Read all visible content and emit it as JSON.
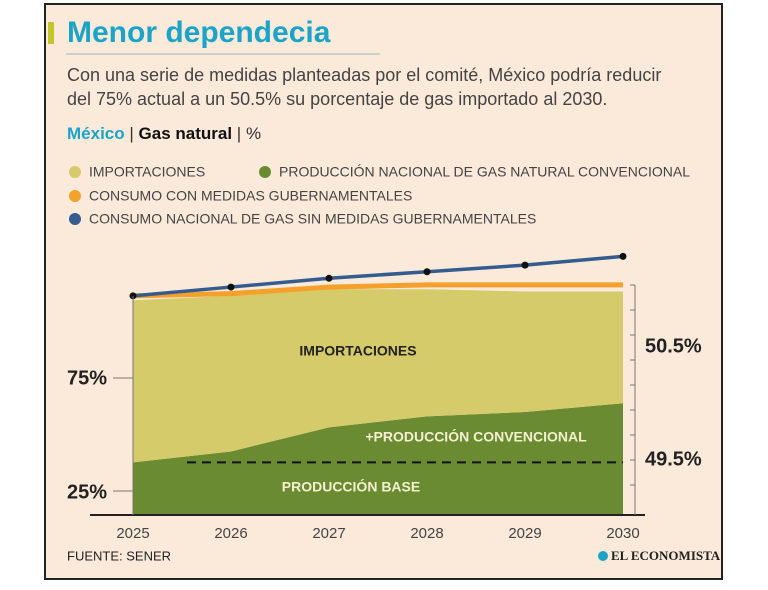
{
  "chart_data": {
    "type": "stacked-area",
    "title": "Menor dependecia",
    "subtitle": [
      "Con una serie de medidas planteadas por el comité, México podría reducir",
      "del 75% actual a un 50.5% su porcentaje de gas importado al 2030."
    ],
    "y_label": {
      "region": "México",
      "variable": "Gas natural",
      "unit": "%"
    },
    "categories": [
      "2025",
      "2026",
      "2027",
      "2028",
      "2029",
      "2030"
    ],
    "ylim": [
      0,
      120
    ],
    "series": [
      {
        "name": "IMPORTACIONES",
        "color": "#d6cb6a",
        "kind": "area",
        "values": [
          74,
          71,
          63,
          58,
          55,
          51
        ]
      },
      {
        "name": "PRODUCCIÓN NACIONAL DE GAS NATURAL CONVENCIONAL",
        "color": "#6a8b32",
        "kind": "area",
        "values": [
          24,
          29,
          40,
          45,
          47,
          51
        ]
      },
      {
        "name": "CONSUMO CON MEDIDAS GUBERNAMENTALES",
        "color": "#f5a02a",
        "kind": "line",
        "values": [
          100,
          101,
          104,
          105,
          105,
          105
        ]
      },
      {
        "name": "CONSUMO NACIONAL DE GAS SIN MEDIDAS GUBERNAMENTALES",
        "color": "#345c8e",
        "kind": "line",
        "markers": true,
        "values": [
          100,
          104,
          108,
          111,
          114,
          118
        ]
      }
    ],
    "reference_line": {
      "value": 24,
      "label": "PRODUCCIÓN BASE"
    },
    "annotations": {
      "imports": "IMPORTACIONES",
      "conventional": "+PRODUCCIÓN CONVENCIONAL",
      "left_top": "75%",
      "left_bottom": "25%",
      "right_top": "50.5%",
      "right_bottom": "49.5%"
    },
    "source": "FUENTE: SENER",
    "brand": "EL ECONOMISTA"
  }
}
